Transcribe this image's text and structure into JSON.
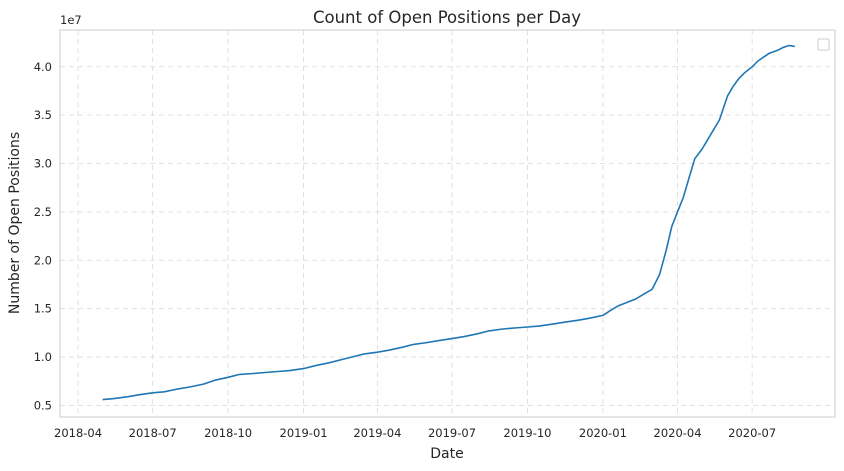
{
  "chart_data": {
    "type": "line",
    "title": "Count of Open Positions per Day",
    "xlabel": "Date",
    "ylabel": "Number of Open Positions",
    "y_offset_label": "1e7",
    "x_ticks": [
      "2018-04",
      "2018-07",
      "2018-10",
      "2019-01",
      "2019-04",
      "2019-07",
      "2019-10",
      "2020-01",
      "2020-04",
      "2020-07"
    ],
    "y_ticks": [
      "0.5",
      "1.0",
      "1.5",
      "2.0",
      "2.5",
      "3.0",
      "3.5",
      "4.0"
    ],
    "xlim": [
      "2018-03-10",
      "2020-10-10"
    ],
    "ylim": [
      3800000,
      43800000
    ],
    "grid": true,
    "legend": "top-right (empty)",
    "colors": {
      "line": "#1f77b4",
      "grid": "#d9d9d9",
      "frame": "#cccccc"
    },
    "series": [
      {
        "x": [
          "2018-05-01",
          "2018-05-15",
          "2018-06-01",
          "2018-06-15",
          "2018-07-01",
          "2018-07-15",
          "2018-08-01",
          "2018-08-15",
          "2018-09-01",
          "2018-09-15",
          "2018-10-01",
          "2018-10-15",
          "2018-11-01",
          "2018-11-15",
          "2018-12-01",
          "2018-12-15",
          "2019-01-01",
          "2019-01-15",
          "2019-02-01",
          "2019-02-15",
          "2019-03-01",
          "2019-03-15",
          "2019-04-01",
          "2019-04-15",
          "2019-05-01",
          "2019-05-15",
          "2019-06-01",
          "2019-06-15",
          "2019-07-01",
          "2019-07-15",
          "2019-08-01",
          "2019-08-15",
          "2019-09-01",
          "2019-09-15",
          "2019-10-01",
          "2019-10-15",
          "2019-11-01",
          "2019-11-15",
          "2019-12-01",
          "2019-12-15",
          "2020-01-01",
          "2020-01-10",
          "2020-01-20",
          "2020-02-01",
          "2020-02-10",
          "2020-02-20",
          "2020-03-01",
          "2020-03-10",
          "2020-03-18",
          "2020-03-25",
          "2020-04-01",
          "2020-04-08",
          "2020-04-15",
          "2020-04-22",
          "2020-05-01",
          "2020-05-08",
          "2020-05-15",
          "2020-05-22",
          "2020-06-01",
          "2020-06-08",
          "2020-06-15",
          "2020-06-22",
          "2020-07-01",
          "2020-07-08",
          "2020-07-15",
          "2020-07-22",
          "2020-08-01",
          "2020-08-08",
          "2020-08-15",
          "2020-08-22"
        ],
        "values": [
          5600000,
          5700000,
          5900000,
          6100000,
          6300000,
          6400000,
          6700000,
          6900000,
          7200000,
          7600000,
          7900000,
          8200000,
          8300000,
          8400000,
          8500000,
          8600000,
          8800000,
          9100000,
          9400000,
          9700000,
          10000000,
          10300000,
          10500000,
          10700000,
          11000000,
          11300000,
          11500000,
          11700000,
          11900000,
          12100000,
          12400000,
          12700000,
          12900000,
          13000000,
          13100000,
          13200000,
          13400000,
          13600000,
          13800000,
          14000000,
          14300000,
          14800000,
          15300000,
          15700000,
          16000000,
          16500000,
          17000000,
          18500000,
          21000000,
          23500000,
          25000000,
          26500000,
          28500000,
          30500000,
          31500000,
          32500000,
          33500000,
          34500000,
          37000000,
          38000000,
          38800000,
          39400000,
          40000000,
          40600000,
          41000000,
          41400000,
          41700000,
          42000000,
          42200000,
          42100000
        ]
      }
    ]
  }
}
